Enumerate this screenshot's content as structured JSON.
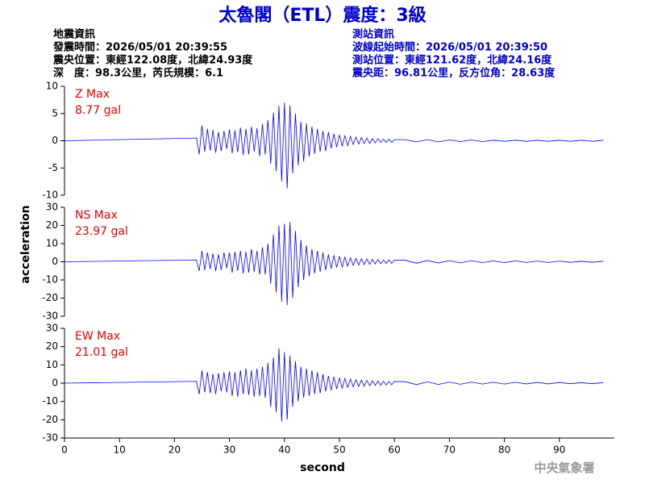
{
  "header": {
    "title": "太魯閣（ETL）震度：3級",
    "left": [
      "地震資訊",
      "發震時間：2026/05/01 20:39:55",
      "震央位置：東經122.08度，北緯24.93度",
      "深　度：98.3公里，芮氏規模：6.1"
    ],
    "right": [
      "測站資訊",
      "波線起始時間：2026/05/01 20:39:50",
      "測站位置：東經121.62度，北緯24.16度",
      "震央距：96.81公里，反方位角：28.63度"
    ],
    "watermark": "中央氣象署"
  },
  "chart_data": {
    "type": "line",
    "xlabel": "second",
    "ylabel": "acceleration",
    "xlim": [
      0,
      100
    ],
    "xticks": [
      0,
      10,
      20,
      30,
      40,
      50,
      60,
      70,
      80,
      90
    ],
    "x": [
      0,
      24,
      24.5,
      25,
      25.5,
      26,
      26.5,
      27,
      27.5,
      28,
      28.5,
      29,
      29.5,
      30,
      30.5,
      31,
      31.5,
      32,
      32.5,
      33,
      33.5,
      34,
      34.5,
      35,
      35.5,
      36,
      36.5,
      37,
      37.5,
      38,
      38.5,
      39,
      39.5,
      40,
      40.5,
      41,
      41.5,
      42,
      42.5,
      43,
      43.5,
      44,
      44.5,
      45,
      45.5,
      46,
      46.5,
      47,
      47.5,
      48,
      48.5,
      49,
      49.5,
      50,
      50.5,
      51,
      51.5,
      52,
      52.5,
      53,
      53.5,
      54,
      54.5,
      55,
      55.5,
      56,
      56.5,
      57,
      57.5,
      58,
      58.5,
      59,
      59.5,
      60,
      62,
      64,
      66,
      68,
      70,
      72,
      74,
      76,
      78,
      80,
      82,
      84,
      86,
      88,
      90,
      92,
      94,
      96,
      98
    ],
    "series": [
      {
        "name": "Z Max",
        "max_label": "8.77 gal",
        "color": "#0000ff",
        "label_color": "#e00000",
        "ylim": [
          -10,
          10
        ],
        "yticks": [
          -10,
          -5,
          0,
          5,
          10
        ],
        "values": [
          0,
          0.5,
          -2.5,
          2.8,
          -2,
          2.2,
          -1.8,
          2,
          -2.2,
          1.6,
          -1.9,
          1.8,
          -1.5,
          2.1,
          -2.3,
          1.9,
          -2.1,
          2.4,
          -2.6,
          2.2,
          -2.5,
          2.6,
          -2,
          2.3,
          -2.8,
          3.1,
          -2.5,
          3.8,
          -4.2,
          5.2,
          -5.6,
          6.4,
          -7.5,
          7,
          -8.77,
          6.5,
          -6,
          5,
          -4.5,
          3.5,
          -3.8,
          3.2,
          -2.9,
          2.6,
          -2.4,
          2.2,
          -2,
          1.8,
          -1.9,
          1.6,
          -1.4,
          1.3,
          -1.2,
          1.1,
          -1,
          0.9,
          -0.9,
          0.8,
          -0.7,
          0.7,
          -0.6,
          0.6,
          -0.5,
          0.5,
          -0.5,
          0.4,
          -0.4,
          0.4,
          -0.3,
          0.3,
          -0.3,
          0.3,
          -0.3,
          0.2,
          0.2,
          -0.2,
          0.2,
          -0.2,
          0.15,
          -0.15,
          0.15,
          -0.15,
          0.1,
          -0.1,
          0.1,
          -0.1,
          0.1,
          -0.1,
          0.1,
          -0.1,
          0.1,
          -0.1,
          0.1
        ]
      },
      {
        "name": "NS Max",
        "max_label": "23.97 gal",
        "color": "#0000ff",
        "label_color": "#e00000",
        "ylim": [
          -30,
          30
        ],
        "yticks": [
          -30,
          -20,
          -10,
          0,
          10,
          20,
          30
        ],
        "values": [
          0,
          1,
          -5,
          6,
          -4.5,
          5,
          -4,
          4.5,
          -5,
          4,
          -4.5,
          5,
          -3.5,
          5,
          -6,
          5.5,
          -5,
          6,
          -6.5,
          5.5,
          -6,
          7,
          -5.5,
          6,
          -7,
          8,
          -7,
          10,
          -12,
          15,
          -17,
          20,
          -22,
          21,
          -23.97,
          22,
          -20,
          17,
          -14,
          12,
          -10,
          9,
          -8,
          7,
          -6.5,
          6,
          -5.5,
          5,
          -4.5,
          4,
          -3.8,
          3.5,
          -3.2,
          3,
          -2.8,
          2.6,
          -2.4,
          2.2,
          -2,
          1.9,
          -1.8,
          1.7,
          -1.6,
          1.5,
          -1.4,
          1.3,
          -1.2,
          1.2,
          -1.1,
          1,
          -1,
          1,
          -0.9,
          0.9,
          0.8,
          -0.8,
          0.7,
          -0.7,
          0.6,
          -0.6,
          0.6,
          -0.5,
          0.5,
          -0.5,
          0.5,
          -0.4,
          0.4,
          -0.4,
          0.4,
          -0.3,
          0.3,
          -0.3,
          0.3
        ]
      },
      {
        "name": "EW Max",
        "max_label": "21.01 gal",
        "color": "#0000ff",
        "label_color": "#e00000",
        "ylim": [
          -30,
          30
        ],
        "yticks": [
          -30,
          -20,
          -10,
          0,
          10,
          20,
          30
        ],
        "values": [
          0,
          1,
          -6,
          7,
          -5,
          6,
          -5.5,
          5,
          -6,
          5.5,
          -4.5,
          6,
          -5,
          6.5,
          -7,
          6,
          -7.5,
          7,
          -6,
          8,
          -6.5,
          7,
          -7.5,
          8,
          -7,
          9,
          -8,
          11,
          -13,
          14,
          -16,
          19,
          -21.01,
          17,
          -20,
          15,
          -13,
          12,
          -10,
          9,
          -8,
          8,
          -7,
          7,
          -6,
          6,
          -5.5,
          5,
          -4.5,
          4,
          -3.8,
          3.5,
          -3.2,
          3,
          -2.8,
          2.6,
          -2.4,
          2.2,
          -2,
          1.9,
          -1.8,
          1.7,
          -1.6,
          1.5,
          -1.4,
          1.3,
          -1.2,
          1.2,
          -1.1,
          1,
          -1,
          1,
          -0.9,
          0.9,
          0.8,
          -0.8,
          0.7,
          -0.7,
          0.6,
          -0.6,
          0.6,
          -0.5,
          0.5,
          -0.5,
          0.5,
          -0.4,
          0.4,
          -0.4,
          0.4,
          -0.3,
          0.3,
          -0.3,
          0.3
        ]
      }
    ]
  }
}
